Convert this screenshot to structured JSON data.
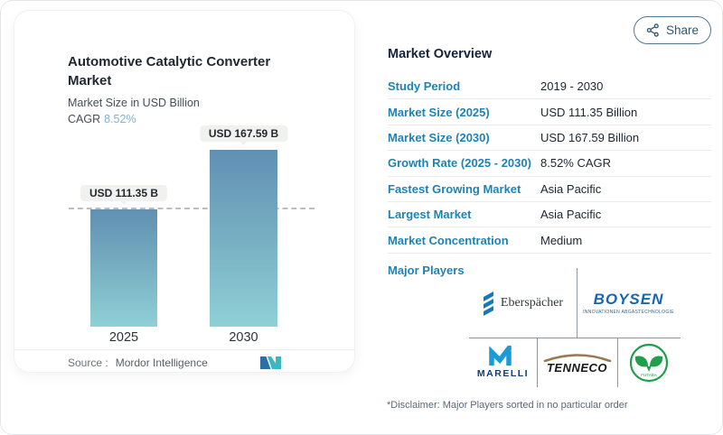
{
  "header": {
    "share_label": "Share"
  },
  "chart_card": {
    "title": "Automotive Catalytic Converter Market",
    "subtitle": "Market Size in USD Billion",
    "cagr_label": "CAGR",
    "cagr_value": "8.52%",
    "source_label": "Source :",
    "source_name": "Mordor Intelligence"
  },
  "chart_data": {
    "type": "bar",
    "title": "Automotive Catalytic Converter Market",
    "ylabel": "Market Size in USD Billion",
    "categories": [
      "2025",
      "2030"
    ],
    "values": [
      111.35,
      167.59
    ],
    "value_labels": [
      "USD 111.35 B",
      "USD 167.59 B"
    ],
    "unit": "USD Billion",
    "cagr_percent": 8.52,
    "ylim": [
      0,
      190
    ],
    "reference_line_at": 111.35,
    "grid": false,
    "legend": false,
    "bar_color_top": "#6090b2",
    "bar_color_bottom": "#8fd0d6"
  },
  "overview": {
    "title": "Market Overview",
    "rows": [
      {
        "label": "Study Period",
        "value": "2019 - 2030"
      },
      {
        "label": "Market Size (2025)",
        "value": "USD 111.35 Billion"
      },
      {
        "label": "Market Size (2030)",
        "value": "USD 167.59 Billion"
      },
      {
        "label": "Growth Rate (2025 - 2030)",
        "value": "8.52% CAGR"
      },
      {
        "label": "Fastest Growing Market",
        "value": "Asia Pacific"
      },
      {
        "label": "Largest Market",
        "value": "Asia Pacific"
      },
      {
        "label": "Market Concentration",
        "value": "Medium"
      }
    ]
  },
  "major_players": {
    "label": "Major Players",
    "players": [
      {
        "name": "Eberspächer"
      },
      {
        "name": "BOYSEN",
        "tagline": "INNOVATIONEN ABGASTECHNOLOGIE"
      },
      {
        "name": "MARELLI"
      },
      {
        "name": "TENNECO"
      },
      {
        "name": "FUTABA"
      }
    ],
    "disclaimer": "*Disclaimer: Major Players sorted in no particular order"
  },
  "icons": {
    "share": "share-nodes-icon",
    "mordor_logo": "mordor-intelligence-logo"
  },
  "colors": {
    "accent_blue": "#1f82b4",
    "cagr_blue": "#7db3d4",
    "bar_top": "#6090b2",
    "bar_bottom": "#8fd0d6",
    "share_text": "#2f566e",
    "boysen_blue": "#1567b2",
    "marelli_blue": "#1a9ad7",
    "futaba_green": "#1f9e4b",
    "tenneco_arc": "#9a7a4e"
  }
}
